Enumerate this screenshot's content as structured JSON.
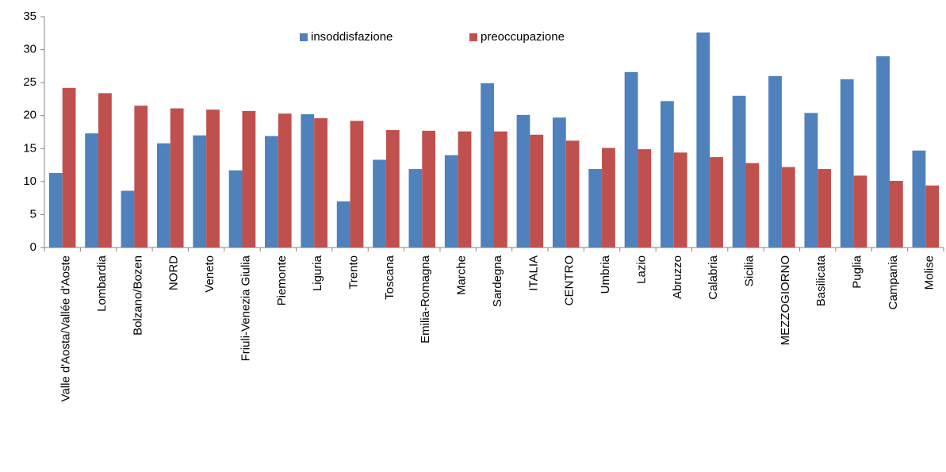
{
  "chart_data": {
    "type": "bar",
    "categories": [
      "Valle d'Aosta/Vallée d'Aoste",
      "Lombardia",
      "Bolzano/Bozen",
      "NORD",
      "Veneto",
      "Friuli-Venezia Giulia",
      "Piemonte",
      "Liguria",
      "Trento",
      "Toscana",
      "Emilia-Romagna",
      "Marche",
      "Sardegna",
      "ITALIA",
      "CENTRO",
      "Umbria",
      "Lazio",
      "Abruzzo",
      "Calabria",
      "Sicilia",
      "MEZZOGIORNO",
      "Basilicata",
      "Puglia",
      "Campania",
      "Molise"
    ],
    "series": [
      {
        "name": "insoddisfazione",
        "color": "#4f81bd",
        "values": [
          11.3,
          17.3,
          8.6,
          15.8,
          17.0,
          11.7,
          16.9,
          20.2,
          7.0,
          13.3,
          11.9,
          14.0,
          24.9,
          20.1,
          19.7,
          11.9,
          26.6,
          22.2,
          32.6,
          23.0,
          26.0,
          20.4,
          25.5,
          29.0,
          14.7
        ]
      },
      {
        "name": "preoccupazione",
        "color": "#c0504d",
        "values": [
          24.2,
          23.4,
          21.5,
          21.1,
          20.9,
          20.7,
          20.3,
          19.6,
          19.2,
          17.8,
          17.7,
          17.6,
          17.6,
          17.1,
          16.2,
          15.1,
          14.9,
          14.4,
          13.7,
          12.8,
          12.2,
          11.9,
          10.9,
          10.1,
          9.4
        ]
      }
    ],
    "ylim": [
      0,
      35
    ],
    "yticks": [
      0,
      5,
      10,
      15,
      20,
      25,
      30,
      35
    ],
    "grid": false,
    "legend": "top"
  }
}
